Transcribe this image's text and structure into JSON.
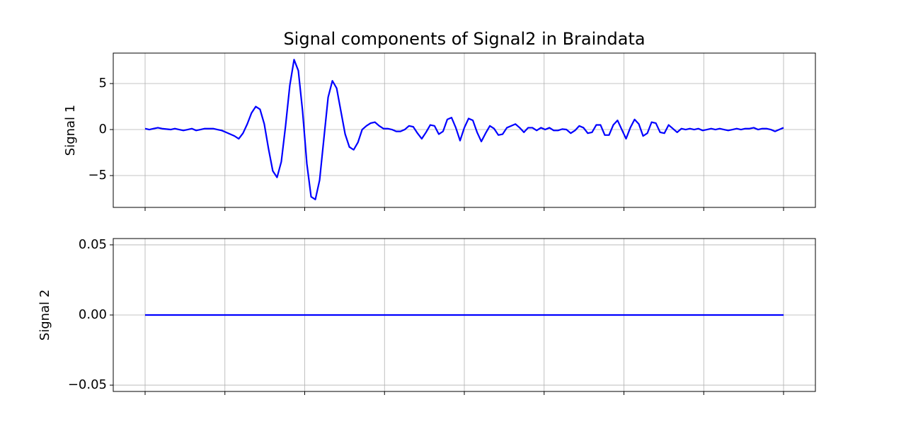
{
  "chart_data": [
    {
      "type": "line",
      "title": "Signal components of Signal2 in Braindata",
      "ylabel": "Signal 1",
      "ylim": [
        -8.46,
        8.31
      ],
      "yticks": [
        {
          "value": -5,
          "label": "−5"
        },
        0,
        5
      ],
      "grid": true,
      "series": [
        {
          "color": "#0000ff",
          "values": [
            0.1,
            0,
            0.1,
            0.2,
            0.1,
            0.05,
            0,
            0.1,
            0,
            -0.1,
            0,
            0.1,
            -0.1,
            0,
            0.1,
            0.1,
            0.1,
            0,
            -0.1,
            -0.3,
            -0.5,
            -0.7,
            -1.0,
            -0.4,
            0.6,
            1.8,
            2.5,
            2.2,
            0.6,
            -2.1,
            -4.5,
            -5.2,
            -3.5,
            0.4,
            4.8,
            7.6,
            6.4,
            2,
            -3.7,
            -7.3,
            -7.6,
            -5.5,
            -1,
            3.5,
            5.3,
            4.5,
            2,
            -0.5,
            -1.9,
            -2.2,
            -1.4,
            0,
            0.4,
            0.7,
            0.8,
            0.4,
            0.1,
            0.1,
            0,
            -0.2,
            -0.2,
            0,
            0.4,
            0.3,
            -0.4,
            -1,
            -0.3,
            0.5,
            0.4,
            -0.5,
            -0.2,
            1.1,
            1.3,
            0.2,
            -1.2,
            0.2,
            1.2,
            1.0,
            -0.3,
            -1.3,
            -0.4,
            0.4,
            0.1,
            -0.6,
            -0.5,
            0.2,
            0.4,
            0.6,
            0.2,
            -0.3,
            0.2,
            0.2,
            -0.1,
            0.2,
            0,
            0.2,
            -0.1,
            -0.1,
            0.05,
            0,
            -0.4,
            -0.1,
            0.4,
            0.2,
            -0.4,
            -0.3,
            0.5,
            0.5,
            -0.6,
            -0.6,
            0.5,
            1.0,
            0,
            -1.0,
            0.2,
            1.1,
            0.6,
            -0.7,
            -0.4,
            0.8,
            0.7,
            -0.3,
            -0.4,
            0.5,
            0.1,
            -0.3,
            0.1,
            0,
            0.1,
            0,
            0.1,
            -0.1,
            0,
            0.1,
            0,
            0.1,
            0,
            -0.1,
            0,
            0.1,
            0,
            0.1,
            0.1,
            0.2,
            0,
            0.1,
            0.1,
            0,
            -0.2,
            0,
            0.2
          ]
        }
      ]
    },
    {
      "type": "line",
      "ylabel": "Signal 2",
      "ylim": [
        -0.0545,
        0.0545
      ],
      "yticks": [
        {
          "value": -0.05,
          "label": "−0.05"
        },
        {
          "value": 0,
          "label": "0.00"
        },
        0.05
      ],
      "grid": true,
      "series": [
        {
          "color": "#0000ff",
          "values": [
            0,
            0,
            0,
            0,
            0,
            0,
            0,
            0,
            0,
            0,
            0,
            0,
            0,
            0,
            0,
            0,
            0,
            0,
            0,
            0,
            0,
            0,
            0,
            0,
            0,
            0,
            0,
            0,
            0,
            0,
            0,
            0,
            0,
            0,
            0,
            0,
            0,
            0,
            0,
            0,
            0,
            0,
            0,
            0,
            0,
            0,
            0,
            0,
            0,
            0,
            0,
            0,
            0,
            0,
            0,
            0,
            0,
            0,
            0,
            0,
            0,
            0,
            0,
            0,
            0,
            0,
            0,
            0,
            0,
            0,
            0,
            0,
            0,
            0,
            0,
            0,
            0,
            0,
            0,
            0,
            0,
            0,
            0,
            0,
            0,
            0,
            0,
            0,
            0,
            0,
            0,
            0,
            0,
            0,
            0,
            0,
            0,
            0,
            0,
            0,
            0,
            0,
            0,
            0,
            0,
            0,
            0,
            0,
            0,
            0,
            0,
            0,
            0,
            0,
            0,
            0,
            0,
            0,
            0,
            0,
            0,
            0,
            0,
            0,
            0,
            0,
            0,
            0,
            0,
            0,
            0,
            0,
            0,
            0,
            0,
            0,
            0,
            0,
            0,
            0,
            0,
            0,
            0,
            0,
            0,
            0,
            0,
            0,
            0,
            0,
            0
          ]
        }
      ]
    }
  ]
}
